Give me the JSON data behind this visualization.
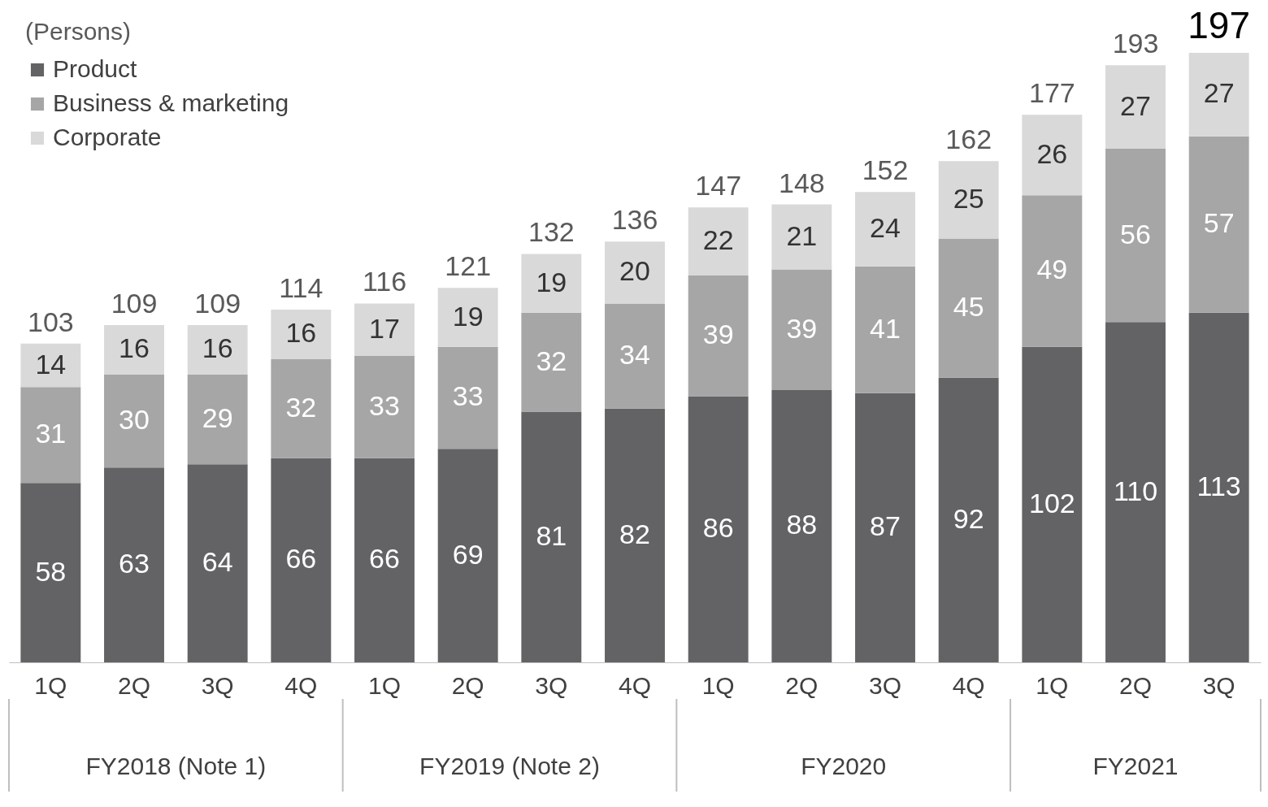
{
  "chart_data": {
    "type": "bar",
    "stacked": true,
    "legend": "top left",
    "legend_title": "(Persons)",
    "data_labels": true,
    "categories": [
      "1Q",
      "2Q",
      "3Q",
      "4Q",
      "1Q",
      "2Q",
      "3Q",
      "4Q",
      "1Q",
      "2Q",
      "3Q",
      "4Q",
      "1Q",
      "2Q",
      "3Q"
    ],
    "series": [
      {
        "name": "Product",
        "color": "#636366",
        "values": [
          58,
          63,
          64,
          66,
          66,
          69,
          81,
          82,
          86,
          88,
          87,
          92,
          102,
          110,
          113
        ]
      },
      {
        "name": "Business & marketing",
        "color": "#a6a6a6",
        "values": [
          31,
          30,
          29,
          32,
          33,
          33,
          32,
          34,
          39,
          39,
          41,
          45,
          49,
          56,
          57
        ]
      },
      {
        "name": "Corporate",
        "color": "#d9d9d9",
        "values": [
          14,
          16,
          16,
          16,
          17,
          19,
          19,
          20,
          22,
          21,
          24,
          25,
          26,
          27,
          27
        ]
      }
    ],
    "totals": [
      "103",
      "109",
      "109",
      "114",
      "116",
      "121",
      "132",
      "136",
      "147",
      "148",
      "152",
      "162",
      "177",
      "193",
      "197"
    ],
    "annotations": [
      "FY2018 (Note 1)",
      "FY2019 (Note 2)",
      "FY2020",
      "FY2021"
    ]
  }
}
